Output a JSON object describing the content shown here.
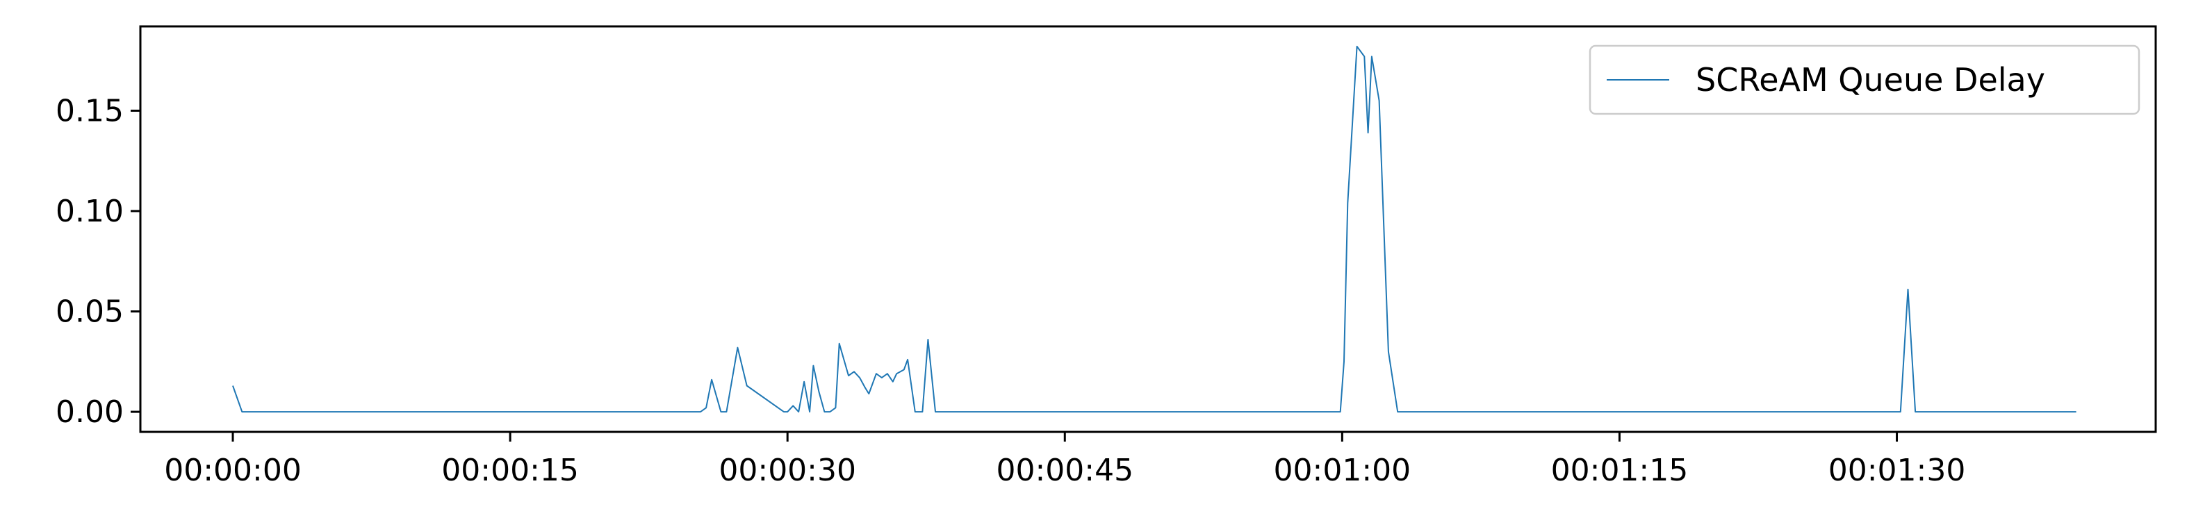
{
  "chart_data": {
    "type": "line",
    "title": "",
    "xlabel": "",
    "ylabel": "",
    "x_unit": "time (hh:mm:ss)",
    "xlim": [
      "-00:00:05",
      "00:01:44"
    ],
    "ylim": [
      -0.01,
      0.192
    ],
    "x_ticks": [
      "00:00:00",
      "00:00:15",
      "00:00:30",
      "00:00:45",
      "00:01:00",
      "00:01:15",
      "00:01:30"
    ],
    "y_ticks": [
      "0.00",
      "0.05",
      "0.10",
      "0.15"
    ],
    "grid": false,
    "legend_position": "top-right",
    "series": [
      {
        "name": "SCReAM Queue Delay",
        "color": "#1f77b4",
        "x": [
          "00:00:00",
          "00:00:00.5",
          "00:00:25.3",
          "00:00:25.6",
          "00:00:25.9",
          "00:00:26.4",
          "00:00:26.7",
          "00:00:27.3",
          "00:00:27.8",
          "00:00:29.8",
          "00:00:30",
          "00:00:30.3",
          "00:00:30.6",
          "00:00:30.9",
          "00:00:31.2",
          "00:00:31.4",
          "00:00:31.7",
          "00:00:32",
          "00:00:32.3",
          "00:00:32.6",
          "00:00:32.8",
          "00:00:33.3",
          "00:00:33.6",
          "00:00:33.9",
          "00:00:34.2",
          "00:00:34.4",
          "00:00:34.8",
          "00:00:35.1",
          "00:00:35.4",
          "00:00:35.7",
          "00:00:35.9",
          "00:00:36.3",
          "00:00:36.5",
          "00:00:36.9",
          "00:00:37.3",
          "00:00:37.6",
          "00:00:38",
          "00:00:59.9",
          "00:01:00.1",
          "00:01:00.3",
          "00:01:00.8",
          "00:01:01.2",
          "00:01:01.4",
          "00:01:01.6",
          "00:01:02",
          "00:01:02.5",
          "00:01:03",
          "00:01:30.2",
          "00:01:30.6",
          "00:01:31",
          "00:01:39.7"
        ],
        "y": [
          0.013,
          0.0,
          0.0,
          0.002,
          0.016,
          0.0,
          0.0,
          0.032,
          0.013,
          0.0,
          0.0,
          0.003,
          0.0,
          0.015,
          0.0,
          0.023,
          0.01,
          0.0,
          0.0,
          0.002,
          0.034,
          0.018,
          0.02,
          0.017,
          0.012,
          0.009,
          0.019,
          0.017,
          0.019,
          0.015,
          0.019,
          0.021,
          0.026,
          0.0,
          0.0,
          0.036,
          0.0,
          0.0,
          0.025,
          0.104,
          0.182,
          0.177,
          0.139,
          0.177,
          0.155,
          0.03,
          0.0,
          0.0,
          0.061,
          0.0,
          0.0
        ]
      }
    ]
  }
}
